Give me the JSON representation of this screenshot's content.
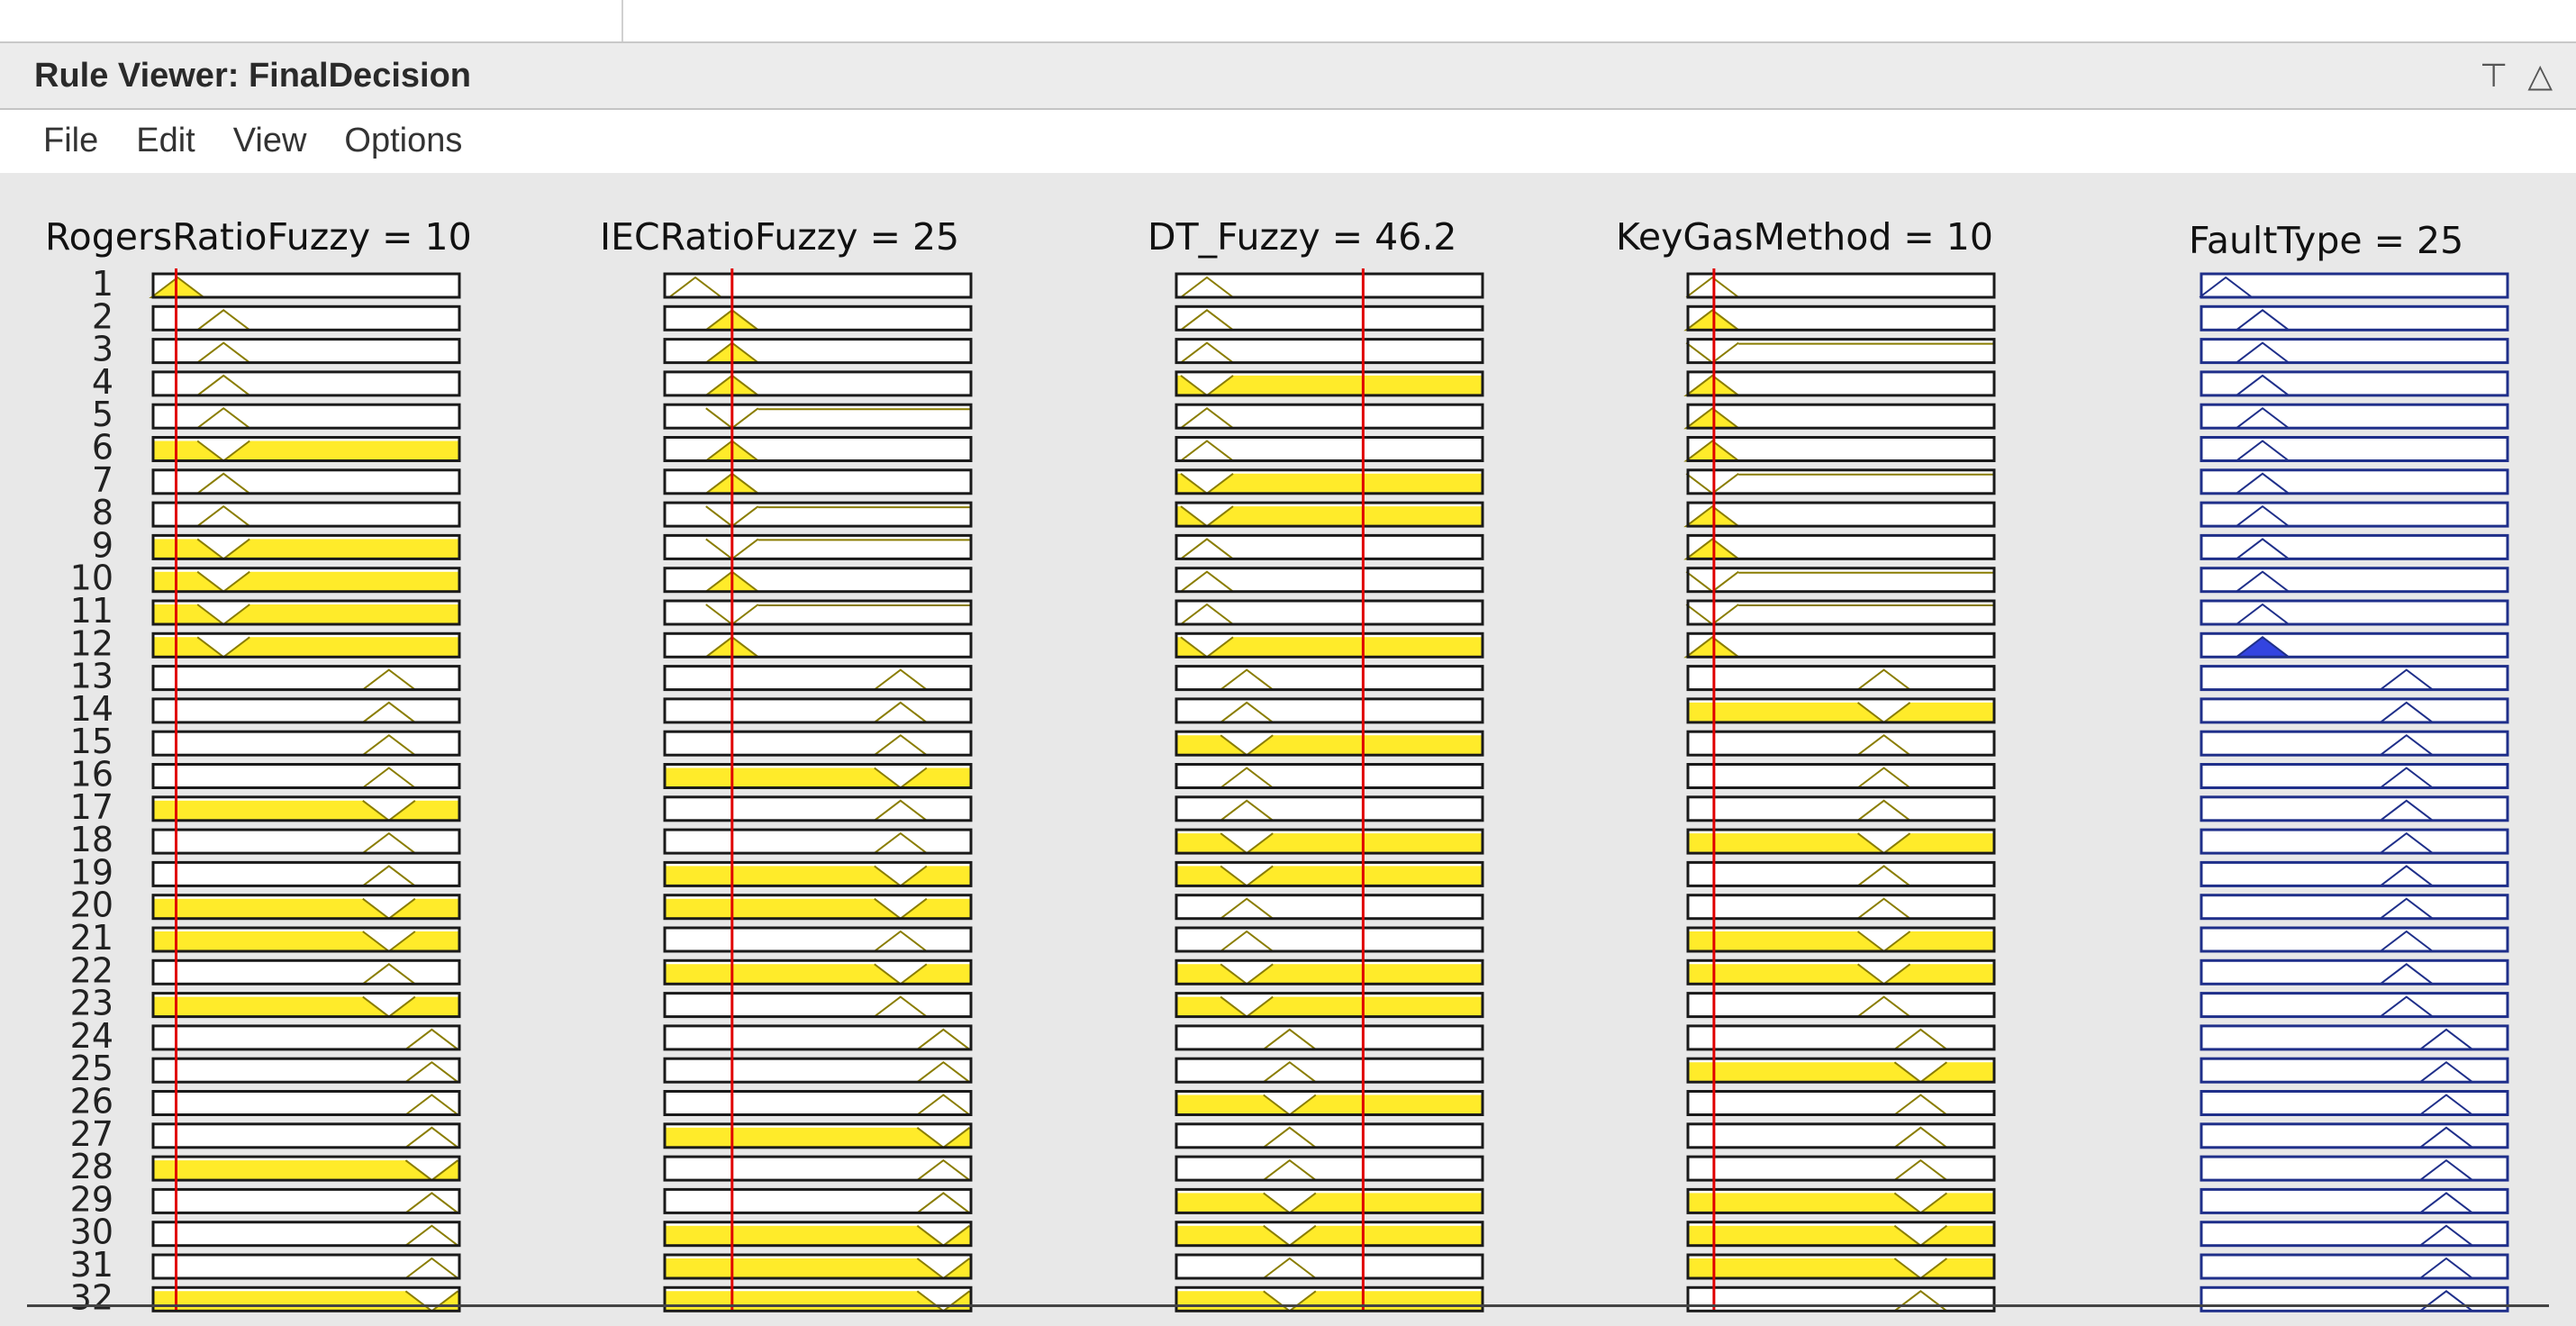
{
  "window": {
    "title": "Rule Viewer: FinalDecision",
    "icons": [
      "pin-icon",
      "maximize-icon"
    ]
  },
  "menubar": {
    "items": [
      {
        "id": "file",
        "label": "File"
      },
      {
        "id": "edit",
        "label": "Edit"
      },
      {
        "id": "view",
        "label": "View"
      },
      {
        "id": "options",
        "label": "Options"
      }
    ]
  },
  "colors": {
    "fill_yellow": "#ffeb2a",
    "mf_outline": "#8a7d00",
    "output_blue": "#1f2f8a",
    "output_fill": "#3344e0",
    "indicator_red": "#e00000"
  },
  "rule_viewer": {
    "row_labels": [
      "1",
      "2",
      "3",
      "4",
      "5",
      "6",
      "7",
      "8",
      "9",
      "10",
      "11",
      "12",
      "13",
      "14",
      "15",
      "16",
      "17",
      "18",
      "19",
      "20",
      "21",
      "22",
      "23",
      "24",
      "25",
      "26",
      "27",
      "28",
      "29",
      "30",
      "31",
      "32"
    ],
    "variables": [
      {
        "id": "rogers",
        "name": "RogersRatioFuzzy",
        "value": "10",
        "kind": "input",
        "indicator": 0.075,
        "rows": [
          {
            "c": 0.08,
            "f": "peak"
          },
          {
            "c": 0.23,
            "f": "none"
          },
          {
            "c": 0.23,
            "f": "none"
          },
          {
            "c": 0.23,
            "f": "none"
          },
          {
            "c": 0.23,
            "f": "none"
          },
          {
            "c": 0.23,
            "f": "full"
          },
          {
            "c": 0.23,
            "f": "none"
          },
          {
            "c": 0.23,
            "f": "none"
          },
          {
            "c": 0.23,
            "f": "full"
          },
          {
            "c": 0.23,
            "f": "full"
          },
          {
            "c": 0.23,
            "f": "full"
          },
          {
            "c": 0.23,
            "f": "full"
          },
          {
            "c": 0.77,
            "f": "none"
          },
          {
            "c": 0.77,
            "f": "none"
          },
          {
            "c": 0.77,
            "f": "none"
          },
          {
            "c": 0.77,
            "f": "none"
          },
          {
            "c": 0.77,
            "f": "full"
          },
          {
            "c": 0.77,
            "f": "none"
          },
          {
            "c": 0.77,
            "f": "none"
          },
          {
            "c": 0.77,
            "f": "full"
          },
          {
            "c": 0.77,
            "f": "full"
          },
          {
            "c": 0.77,
            "f": "none"
          },
          {
            "c": 0.77,
            "f": "full"
          },
          {
            "c": 0.91,
            "f": "none"
          },
          {
            "c": 0.91,
            "f": "none"
          },
          {
            "c": 0.91,
            "f": "none"
          },
          {
            "c": 0.91,
            "f": "none"
          },
          {
            "c": 0.91,
            "f": "full"
          },
          {
            "c": 0.91,
            "f": "none"
          },
          {
            "c": 0.91,
            "f": "none"
          },
          {
            "c": 0.91,
            "f": "none"
          },
          {
            "c": 0.91,
            "f": "full"
          }
        ]
      },
      {
        "id": "iec",
        "name": "IECRatioFuzzy",
        "value": "25",
        "kind": "input",
        "indicator": 0.22,
        "rows": [
          {
            "c": 0.1,
            "f": "none"
          },
          {
            "c": 0.22,
            "f": "peak"
          },
          {
            "c": 0.22,
            "f": "peak"
          },
          {
            "c": 0.22,
            "f": "peak"
          },
          {
            "c": 0.22,
            "f": "line"
          },
          {
            "c": 0.22,
            "f": "peak"
          },
          {
            "c": 0.22,
            "f": "peak"
          },
          {
            "c": 0.22,
            "f": "line"
          },
          {
            "c": 0.22,
            "f": "line"
          },
          {
            "c": 0.22,
            "f": "peak"
          },
          {
            "c": 0.22,
            "f": "line"
          },
          {
            "c": 0.22,
            "f": "peak"
          },
          {
            "c": 0.77,
            "f": "none"
          },
          {
            "c": 0.77,
            "f": "none"
          },
          {
            "c": 0.77,
            "f": "none"
          },
          {
            "c": 0.77,
            "f": "full"
          },
          {
            "c": 0.77,
            "f": "none"
          },
          {
            "c": 0.77,
            "f": "none"
          },
          {
            "c": 0.77,
            "f": "full"
          },
          {
            "c": 0.77,
            "f": "full"
          },
          {
            "c": 0.77,
            "f": "none"
          },
          {
            "c": 0.77,
            "f": "full"
          },
          {
            "c": 0.77,
            "f": "none"
          },
          {
            "c": 0.91,
            "f": "none"
          },
          {
            "c": 0.91,
            "f": "none"
          },
          {
            "c": 0.91,
            "f": "none"
          },
          {
            "c": 0.91,
            "f": "full"
          },
          {
            "c": 0.91,
            "f": "none"
          },
          {
            "c": 0.91,
            "f": "none"
          },
          {
            "c": 0.91,
            "f": "full"
          },
          {
            "c": 0.91,
            "f": "full"
          },
          {
            "c": 0.91,
            "f": "full"
          }
        ]
      },
      {
        "id": "dt",
        "name": "DT_Fuzzy",
        "value": "46.2",
        "kind": "input",
        "indicator": 0.61,
        "rows": [
          {
            "c": 0.1,
            "f": "none"
          },
          {
            "c": 0.1,
            "f": "none"
          },
          {
            "c": 0.1,
            "f": "none"
          },
          {
            "c": 0.1,
            "f": "full"
          },
          {
            "c": 0.1,
            "f": "none"
          },
          {
            "c": 0.1,
            "f": "none"
          },
          {
            "c": 0.1,
            "f": "full"
          },
          {
            "c": 0.1,
            "f": "full"
          },
          {
            "c": 0.1,
            "f": "none"
          },
          {
            "c": 0.1,
            "f": "none"
          },
          {
            "c": 0.1,
            "f": "none"
          },
          {
            "c": 0.1,
            "f": "full"
          },
          {
            "c": 0.23,
            "f": "none"
          },
          {
            "c": 0.23,
            "f": "none"
          },
          {
            "c": 0.23,
            "f": "full"
          },
          {
            "c": 0.23,
            "f": "none"
          },
          {
            "c": 0.23,
            "f": "none"
          },
          {
            "c": 0.23,
            "f": "full"
          },
          {
            "c": 0.23,
            "f": "full"
          },
          {
            "c": 0.23,
            "f": "none"
          },
          {
            "c": 0.23,
            "f": "none"
          },
          {
            "c": 0.23,
            "f": "full"
          },
          {
            "c": 0.23,
            "f": "full"
          },
          {
            "c": 0.37,
            "f": "none"
          },
          {
            "c": 0.37,
            "f": "none"
          },
          {
            "c": 0.37,
            "f": "full"
          },
          {
            "c": 0.37,
            "f": "none"
          },
          {
            "c": 0.37,
            "f": "none"
          },
          {
            "c": 0.37,
            "f": "full"
          },
          {
            "c": 0.37,
            "f": "full"
          },
          {
            "c": 0.37,
            "f": "none"
          },
          {
            "c": 0.37,
            "f": "full"
          }
        ]
      },
      {
        "id": "keygas",
        "name": "KeyGasMethod",
        "value": "10",
        "kind": "input",
        "indicator": 0.085,
        "rows": [
          {
            "c": 0.08,
            "f": "none"
          },
          {
            "c": 0.08,
            "f": "peak"
          },
          {
            "c": 0.08,
            "f": "line"
          },
          {
            "c": 0.08,
            "f": "peak"
          },
          {
            "c": 0.08,
            "f": "peak"
          },
          {
            "c": 0.08,
            "f": "peak"
          },
          {
            "c": 0.08,
            "f": "line"
          },
          {
            "c": 0.08,
            "f": "peak"
          },
          {
            "c": 0.08,
            "f": "peak"
          },
          {
            "c": 0.08,
            "f": "line"
          },
          {
            "c": 0.08,
            "f": "line"
          },
          {
            "c": 0.08,
            "f": "peak"
          },
          {
            "c": 0.64,
            "f": "none"
          },
          {
            "c": 0.64,
            "f": "full"
          },
          {
            "c": 0.64,
            "f": "none"
          },
          {
            "c": 0.64,
            "f": "none"
          },
          {
            "c": 0.64,
            "f": "none"
          },
          {
            "c": 0.64,
            "f": "full"
          },
          {
            "c": 0.64,
            "f": "none"
          },
          {
            "c": 0.64,
            "f": "none"
          },
          {
            "c": 0.64,
            "f": "full"
          },
          {
            "c": 0.64,
            "f": "full"
          },
          {
            "c": 0.64,
            "f": "none"
          },
          {
            "c": 0.76,
            "f": "none"
          },
          {
            "c": 0.76,
            "f": "full"
          },
          {
            "c": 0.76,
            "f": "none"
          },
          {
            "c": 0.76,
            "f": "none"
          },
          {
            "c": 0.76,
            "f": "none"
          },
          {
            "c": 0.76,
            "f": "full"
          },
          {
            "c": 0.76,
            "f": "full"
          },
          {
            "c": 0.76,
            "f": "full"
          },
          {
            "c": 0.76,
            "f": "none"
          }
        ]
      },
      {
        "id": "fault",
        "name": "FaultType",
        "value": "25",
        "kind": "output",
        "rows": [
          {
            "c": 0.08,
            "f": "none"
          },
          {
            "c": 0.2,
            "f": "none"
          },
          {
            "c": 0.2,
            "f": "none"
          },
          {
            "c": 0.2,
            "f": "none"
          },
          {
            "c": 0.2,
            "f": "none"
          },
          {
            "c": 0.2,
            "f": "none"
          },
          {
            "c": 0.2,
            "f": "none"
          },
          {
            "c": 0.2,
            "f": "none"
          },
          {
            "c": 0.2,
            "f": "none"
          },
          {
            "c": 0.2,
            "f": "none"
          },
          {
            "c": 0.2,
            "f": "none"
          },
          {
            "c": 0.2,
            "f": "out"
          },
          {
            "c": 0.67,
            "f": "none"
          },
          {
            "c": 0.67,
            "f": "none"
          },
          {
            "c": 0.67,
            "f": "none"
          },
          {
            "c": 0.67,
            "f": "none"
          },
          {
            "c": 0.67,
            "f": "none"
          },
          {
            "c": 0.67,
            "f": "none"
          },
          {
            "c": 0.67,
            "f": "none"
          },
          {
            "c": 0.67,
            "f": "none"
          },
          {
            "c": 0.67,
            "f": "none"
          },
          {
            "c": 0.67,
            "f": "none"
          },
          {
            "c": 0.67,
            "f": "none"
          },
          {
            "c": 0.8,
            "f": "none"
          },
          {
            "c": 0.8,
            "f": "none"
          },
          {
            "c": 0.8,
            "f": "none"
          },
          {
            "c": 0.8,
            "f": "none"
          },
          {
            "c": 0.8,
            "f": "none"
          },
          {
            "c": 0.8,
            "f": "none"
          },
          {
            "c": 0.8,
            "f": "none"
          },
          {
            "c": 0.8,
            "f": "none"
          },
          {
            "c": 0.8,
            "f": "none"
          }
        ]
      }
    ]
  }
}
